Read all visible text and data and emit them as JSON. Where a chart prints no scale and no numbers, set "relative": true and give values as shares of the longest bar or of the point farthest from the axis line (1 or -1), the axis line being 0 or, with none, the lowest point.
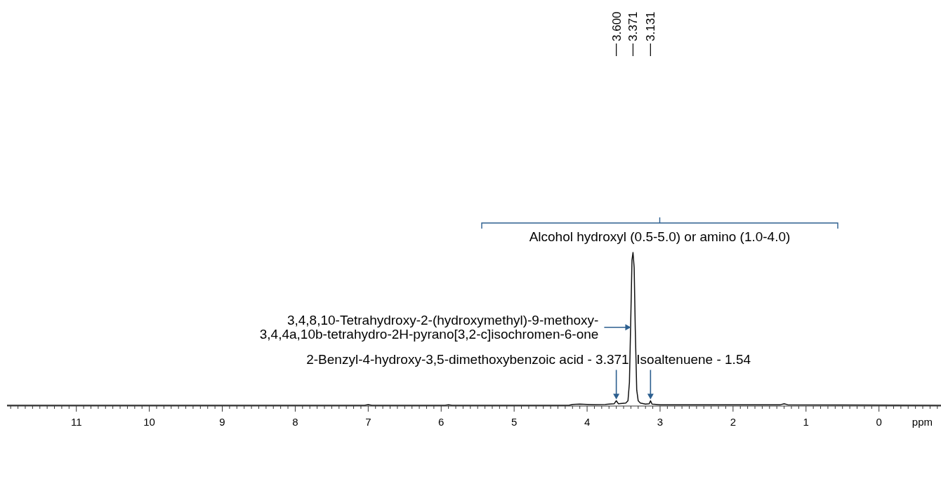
{
  "chart_data": {
    "type": "line",
    "relative": true,
    "xlabel": "ppm",
    "xlim": [
      11.95,
      -0.85
    ],
    "xticks": [
      {
        "value": 11.9,
        "label": null
      },
      {
        "value": 11.8,
        "label": null
      },
      {
        "value": 11.7,
        "label": null
      },
      {
        "value": 11.6,
        "label": null
      },
      {
        "value": 11.5,
        "label": null
      },
      {
        "value": 11.4,
        "label": null
      },
      {
        "value": 11.3,
        "label": null
      },
      {
        "value": 11.2,
        "label": null
      },
      {
        "value": 11.1,
        "label": null
      },
      11,
      {
        "value": 10.9,
        "label": null
      },
      {
        "value": 10.8,
        "label": null
      },
      {
        "value": 10.7,
        "label": null
      },
      {
        "value": 10.6,
        "label": null
      },
      {
        "value": 10.5,
        "label": null
      },
      {
        "value": 10.4,
        "label": null
      },
      {
        "value": 10.3,
        "label": null
      },
      {
        "value": 10.2,
        "label": null
      },
      {
        "value": 10.1,
        "label": null
      },
      10,
      {
        "value": 9.9,
        "label": null
      },
      {
        "value": 9.8,
        "label": null
      },
      {
        "value": 9.7,
        "label": null
      },
      {
        "value": 9.6,
        "label": null
      },
      {
        "value": 9.5,
        "label": null
      },
      {
        "value": 9.4,
        "label": null
      },
      {
        "value": 9.3,
        "label": null
      },
      {
        "value": 9.2,
        "label": null
      },
      {
        "value": 9.1,
        "label": null
      },
      9,
      {
        "value": 8.9,
        "label": null
      },
      {
        "value": 8.8,
        "label": null
      },
      {
        "value": 8.7,
        "label": null
      },
      {
        "value": 8.6,
        "label": null
      },
      {
        "value": 8.5,
        "label": null
      },
      {
        "value": 8.4,
        "label": null
      },
      {
        "value": 8.3,
        "label": null
      },
      {
        "value": 8.2,
        "label": null
      },
      {
        "value": 8.1,
        "label": null
      },
      8,
      {
        "value": 7.9,
        "label": null
      },
      {
        "value": 7.8,
        "label": null
      },
      {
        "value": 7.7,
        "label": null
      },
      {
        "value": 7.6,
        "label": null
      },
      {
        "value": 7.5,
        "label": null
      },
      {
        "value": 7.4,
        "label": null
      },
      {
        "value": 7.3,
        "label": null
      },
      {
        "value": 7.2,
        "label": null
      },
      {
        "value": 7.1,
        "label": null
      },
      7,
      {
        "value": 6.9,
        "label": null
      },
      {
        "value": 6.8,
        "label": null
      },
      {
        "value": 6.7,
        "label": null
      },
      {
        "value": 6.6,
        "label": null
      },
      {
        "value": 6.5,
        "label": null
      },
      {
        "value": 6.4,
        "label": null
      },
      {
        "value": 6.3,
        "label": null
      },
      {
        "value": 6.2,
        "label": null
      },
      {
        "value": 6.1,
        "label": null
      },
      6,
      {
        "value": 5.9,
        "label": null
      },
      {
        "value": 5.8,
        "label": null
      },
      {
        "value": 5.7,
        "label": null
      },
      {
        "value": 5.6,
        "label": null
      },
      {
        "value": 5.5,
        "label": null
      },
      {
        "value": 5.4,
        "label": null
      },
      {
        "value": 5.3,
        "label": null
      },
      {
        "value": 5.2,
        "label": null
      },
      {
        "value": 5.1,
        "label": null
      },
      5,
      {
        "value": 4.9,
        "label": null
      },
      {
        "value": 4.8,
        "label": null
      },
      {
        "value": 4.7,
        "label": null
      },
      {
        "value": 4.6,
        "label": null
      },
      {
        "value": 4.5,
        "label": null
      },
      {
        "value": 4.4,
        "label": null
      },
      {
        "value": 4.3,
        "label": null
      },
      {
        "value": 4.2,
        "label": null
      },
      {
        "value": 4.1,
        "label": null
      },
      4,
      {
        "value": 3.9,
        "label": null
      },
      {
        "value": 3.8,
        "label": null
      },
      {
        "value": 3.7,
        "label": null
      },
      {
        "value": 3.6,
        "label": null
      },
      {
        "value": 3.5,
        "label": null
      },
      {
        "value": 3.4,
        "label": null
      },
      {
        "value": 3.3,
        "label": null
      },
      {
        "value": 3.2,
        "label": null
      },
      {
        "value": 3.1,
        "label": null
      },
      3,
      {
        "value": 2.9,
        "label": null
      },
      {
        "value": 2.8,
        "label": null
      },
      {
        "value": 2.7,
        "label": null
      },
      {
        "value": 2.6,
        "label": null
      },
      {
        "value": 2.5,
        "label": null
      },
      {
        "value": 2.4,
        "label": null
      },
      {
        "value": 2.3,
        "label": null
      },
      {
        "value": 2.2,
        "label": null
      },
      {
        "value": 2.1,
        "label": null
      },
      2,
      {
        "value": 1.9,
        "label": null
      },
      {
        "value": 1.8,
        "label": null
      },
      {
        "value": 1.7,
        "label": null
      },
      {
        "value": 1.6,
        "label": null
      },
      {
        "value": 1.5,
        "label": null
      },
      {
        "value": 1.4,
        "label": null
      },
      {
        "value": 1.3,
        "label": null
      },
      {
        "value": 1.2,
        "label": null
      },
      {
        "value": 1.1,
        "label": null
      },
      1,
      {
        "value": 0.9,
        "label": null
      },
      {
        "value": 0.8,
        "label": null
      },
      {
        "value": 0.7,
        "label": null
      },
      {
        "value": 0.6,
        "label": null
      },
      {
        "value": 0.5,
        "label": null
      },
      {
        "value": 0.4,
        "label": null
      },
      {
        "value": 0.3,
        "label": null
      },
      {
        "value": 0.2,
        "label": null
      },
      {
        "value": 0.1,
        "label": null
      },
      0,
      {
        "value": -0.1,
        "label": null
      },
      {
        "value": -0.2,
        "label": null
      },
      {
        "value": -0.3,
        "label": null
      },
      {
        "value": -0.4,
        "label": null
      },
      {
        "value": -0.5,
        "label": null
      },
      {
        "value": -0.6,
        "label": null
      },
      {
        "value": -0.7,
        "label": null
      },
      {
        "value": -0.8,
        "label": null
      }
    ],
    "series": [
      {
        "color": "#111111",
        "x": [
          11.95,
          7.05,
          7.0,
          6.95,
          5.95,
          5.9,
          5.85,
          4.25,
          4.2,
          4.1,
          4.0,
          3.9,
          3.75,
          3.7,
          3.63,
          3.6,
          3.57,
          3.47,
          3.44,
          3.42,
          3.4,
          3.385,
          3.371,
          3.355,
          3.34,
          3.32,
          3.3,
          3.27,
          3.2,
          3.15,
          3.131,
          3.11,
          3.0,
          1.35,
          1.3,
          1.25,
          -0.85
        ],
        "values": [
          0,
          0,
          0.005,
          0,
          0,
          0.003,
          0,
          0,
          0.006,
          0.008,
          0.006,
          0.005,
          0.006,
          0.008,
          0.01,
          0.03,
          0.01,
          0.015,
          0.03,
          0.15,
          0.6,
          0.95,
          1,
          0.9,
          0.5,
          0.1,
          0.03,
          0.015,
          0.008,
          0.01,
          0.03,
          0.008,
          0.003,
          0.004,
          0.01,
          0.004,
          0
        ]
      }
    ],
    "annotations": [
      "Alcohol hydroxyl (0.5-5.0) or amino (1.0-4.0)",
      {
        "text": "3.600",
        "x": 3.6
      },
      {
        "text": "3.371",
        "x": 3.371
      },
      {
        "text": "3.131",
        "x": 3.131
      },
      {
        "text": "3,4,8,10-Tetrahydroxy-2-(hydroxymethyl)-9-methoxy-3,4,4a,10b-tetrahydro-2H-pyrano[3,2-c]isochromen-6-one",
        "x": 3.371,
        "y": 0.51
      },
      {
        "text": "Isoaltenuene - 1.54",
        "x": 3.131,
        "y": 0.03
      },
      {
        "text": "2-Benzyl-4-hydroxy-3,5-dimethoxybenzoic acid - 3.371",
        "x": 3.6,
        "y": 0.03
      }
    ]
  }
}
